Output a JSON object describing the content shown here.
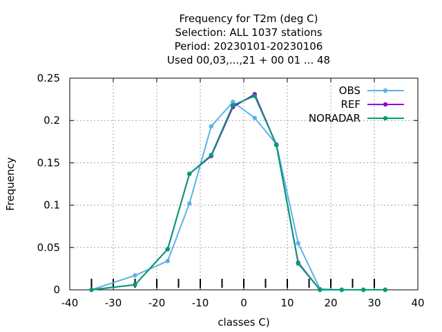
{
  "chart_data": {
    "type": "line",
    "title_lines": [
      "Frequency  for T2m (deg C)",
      "Selection: ALL   1037 stations",
      "Period: 20230101-20230106",
      "Used  00,03,...,21  + 00 01 ... 48"
    ],
    "xlabel": "classes C)",
    "ylabel": "Frequency",
    "xlim": [
      -40,
      40
    ],
    "ylim": [
      0,
      0.25
    ],
    "xticks": [
      -40,
      -30,
      -20,
      -10,
      0,
      10,
      20,
      30,
      40
    ],
    "xtick_labels": [
      "-40",
      "-30",
      "-20",
      "-10",
      "0",
      "10",
      "20",
      "30",
      "40"
    ],
    "yticks": [
      0,
      0.05,
      0.1,
      0.15,
      0.2,
      0.25
    ],
    "ytick_labels": [
      "0",
      "0.05",
      "0.1",
      "0.15",
      "0.2",
      "0.25"
    ],
    "class_marks": [
      -35,
      -30,
      -25,
      -20,
      -15,
      -10,
      -5,
      0,
      5,
      10,
      15,
      20,
      25,
      30
    ],
    "grid": true,
    "legend_position": "top-right",
    "x": [
      -35,
      -25,
      -17.5,
      -12.5,
      -7.5,
      -2.5,
      2.5,
      7.5,
      12.5,
      17.5,
      22.5,
      27.5,
      32.5
    ],
    "series": [
      {
        "name": "OBS",
        "color": "#56b4e9",
        "values": [
          0.0,
          0.017,
          0.034,
          0.102,
          0.193,
          0.222,
          0.203,
          0.172,
          0.055,
          0.001,
          0.0,
          0.0,
          0.0
        ]
      },
      {
        "name": "REF",
        "color": "#9400d3",
        "values": [
          0.0,
          0.006,
          0.048,
          0.137,
          0.158,
          0.216,
          0.231,
          0.171,
          0.032,
          0.0,
          0.0,
          0.0,
          0.0
        ]
      },
      {
        "name": "NORADAR",
        "color": "#009e73",
        "values": [
          0.0,
          0.006,
          0.048,
          0.137,
          0.159,
          0.218,
          0.229,
          0.171,
          0.031,
          0.0,
          0.0,
          0.0,
          0.0
        ]
      }
    ]
  }
}
